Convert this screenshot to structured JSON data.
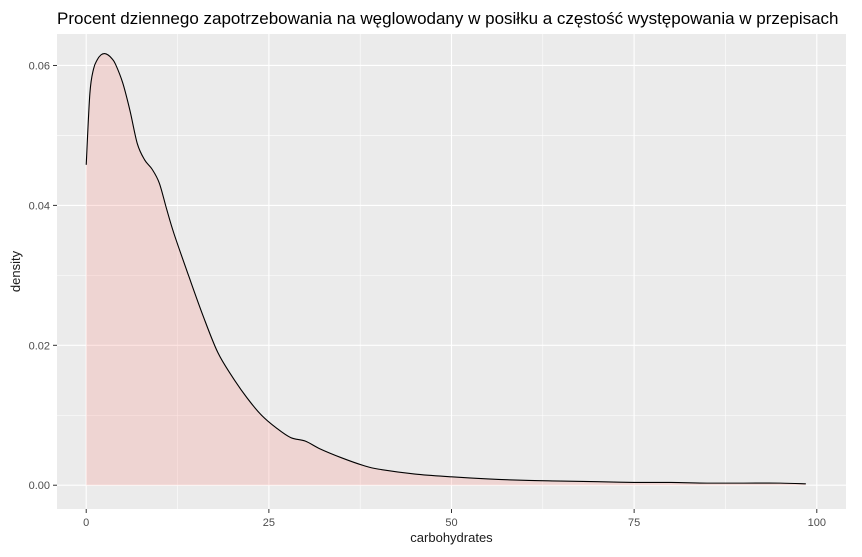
{
  "chart_data": {
    "type": "area",
    "title": "Procent dziennego zapotrzebowania na węglowodany w posiłku a częstość występowania w przepisach",
    "xlabel": "carbohydrates",
    "ylabel": "density",
    "xlim": [
      -4,
      104
    ],
    "ylim": [
      -0.0034,
      0.0645
    ],
    "x_ticks": [
      0,
      25,
      50,
      75,
      100
    ],
    "x_tick_labels": [
      "0",
      "25",
      "50",
      "75",
      "100"
    ],
    "y_ticks": [
      0.0,
      0.02,
      0.04,
      0.06
    ],
    "y_tick_labels": [
      "0.00",
      "0.02",
      "0.04",
      "0.06"
    ],
    "grid": true,
    "legend": "none",
    "colors": {
      "panel_background": "#ebebeb",
      "grid_line": "#ffffff",
      "fill": "#f8766d",
      "fill_opacity": 0.2,
      "line": "#000000",
      "tick_mark": "#333333"
    },
    "series": [
      {
        "x": [
          0,
          0.5,
          1,
          1.5,
          2,
          2.5,
          3,
          3.5,
          4,
          5,
          6,
          7,
          8,
          9,
          10,
          11,
          12,
          14,
          16,
          18,
          20,
          22,
          24,
          26,
          28,
          30,
          32,
          35,
          38,
          40,
          45,
          50,
          55,
          60,
          65,
          70,
          75,
          80,
          85,
          90,
          95,
          98.5
        ],
        "y": [
          0.0458,
          0.056,
          0.0595,
          0.0608,
          0.0615,
          0.0617,
          0.0615,
          0.061,
          0.0602,
          0.0575,
          0.0535,
          0.0488,
          0.0465,
          0.0452,
          0.0432,
          0.0395,
          0.036,
          0.03,
          0.0242,
          0.019,
          0.0155,
          0.0125,
          0.01,
          0.0082,
          0.0068,
          0.0063,
          0.0052,
          0.0039,
          0.0028,
          0.0023,
          0.0016,
          0.0012,
          0.0009,
          0.0007,
          0.0006,
          0.0005,
          0.0004,
          0.0004,
          0.0003,
          0.0003,
          0.0003,
          0.0002
        ]
      }
    ]
  }
}
